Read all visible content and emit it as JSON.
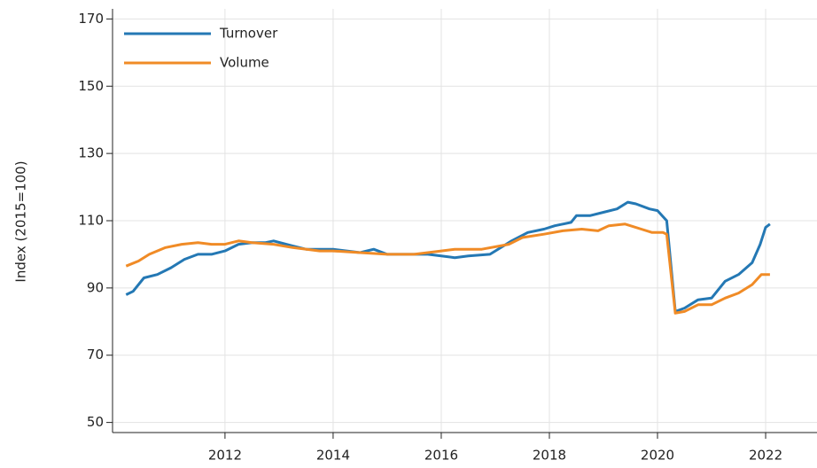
{
  "chart_data": {
    "type": "line",
    "ylabel": "Index (2015=100)",
    "xlim": [
      2009.92,
      2022.95
    ],
    "xticks": [
      2012,
      2014,
      2016,
      2018,
      2020,
      2022
    ],
    "ylim": [
      47,
      173
    ],
    "yticks": [
      50,
      70,
      90,
      110,
      130,
      150,
      170
    ],
    "grid": true,
    "legend": "upper left",
    "series": [
      {
        "name": "Turnover",
        "color": "#2478b4",
        "x": [
          2010.17,
          2010.3,
          2010.5,
          2010.75,
          2011.0,
          2011.25,
          2011.5,
          2011.75,
          2012.0,
          2012.25,
          2012.5,
          2012.75,
          2012.9,
          2013.25,
          2013.5,
          2014.0,
          2014.25,
          2014.5,
          2014.75,
          2015.0,
          2015.5,
          2015.75,
          2016.0,
          2016.25,
          2016.5,
          2016.9,
          2017.0,
          2017.3,
          2017.6,
          2017.9,
          2018.1,
          2018.4,
          2018.5,
          2018.75,
          2019.0,
          2019.25,
          2019.45,
          2019.6,
          2019.85,
          2020.0,
          2020.17,
          2020.33,
          2020.5,
          2020.75,
          2021.0,
          2021.25,
          2021.5,
          2021.75,
          2021.9,
          2022.0,
          2022.08
        ],
        "values": [
          88,
          89,
          93,
          94,
          96,
          98.5,
          100,
          100,
          101,
          103,
          103.5,
          103.5,
          104,
          102.5,
          101.5,
          101.5,
          101,
          100.5,
          101.5,
          100,
          100,
          100,
          99.5,
          99,
          99.5,
          100,
          101,
          104,
          106.5,
          107.5,
          108.5,
          109.5,
          111.5,
          111.5,
          112.5,
          113.5,
          115.5,
          115,
          113.5,
          113,
          110,
          83,
          84,
          86.5,
          87,
          92,
          94,
          97.5,
          103,
          108,
          109
        ]
      },
      {
        "name": "Volume",
        "color": "#f08b26",
        "x": [
          2010.17,
          2010.4,
          2010.6,
          2010.9,
          2011.2,
          2011.5,
          2011.75,
          2012.0,
          2012.25,
          2012.5,
          2012.9,
          2013.25,
          2013.75,
          2014.0,
          2014.5,
          2015.0,
          2015.5,
          2016.0,
          2016.25,
          2016.75,
          2017.25,
          2017.5,
          2017.9,
          2018.25,
          2018.6,
          2018.9,
          2019.1,
          2019.4,
          2019.7,
          2019.9,
          2020.1,
          2020.17,
          2020.33,
          2020.5,
          2020.75,
          2021.0,
          2021.25,
          2021.5,
          2021.75,
          2021.92,
          2022.08
        ],
        "values": [
          96.5,
          98,
          100,
          102,
          103,
          103.5,
          103,
          103,
          104,
          103.5,
          103,
          102,
          101,
          101,
          100.5,
          100,
          100,
          101,
          101.5,
          101.5,
          103,
          105,
          106,
          107,
          107.5,
          107,
          108.5,
          109,
          107.5,
          106.5,
          106.5,
          106,
          82.5,
          83,
          85,
          85,
          87,
          88.5,
          91,
          94,
          94
        ]
      }
    ]
  }
}
